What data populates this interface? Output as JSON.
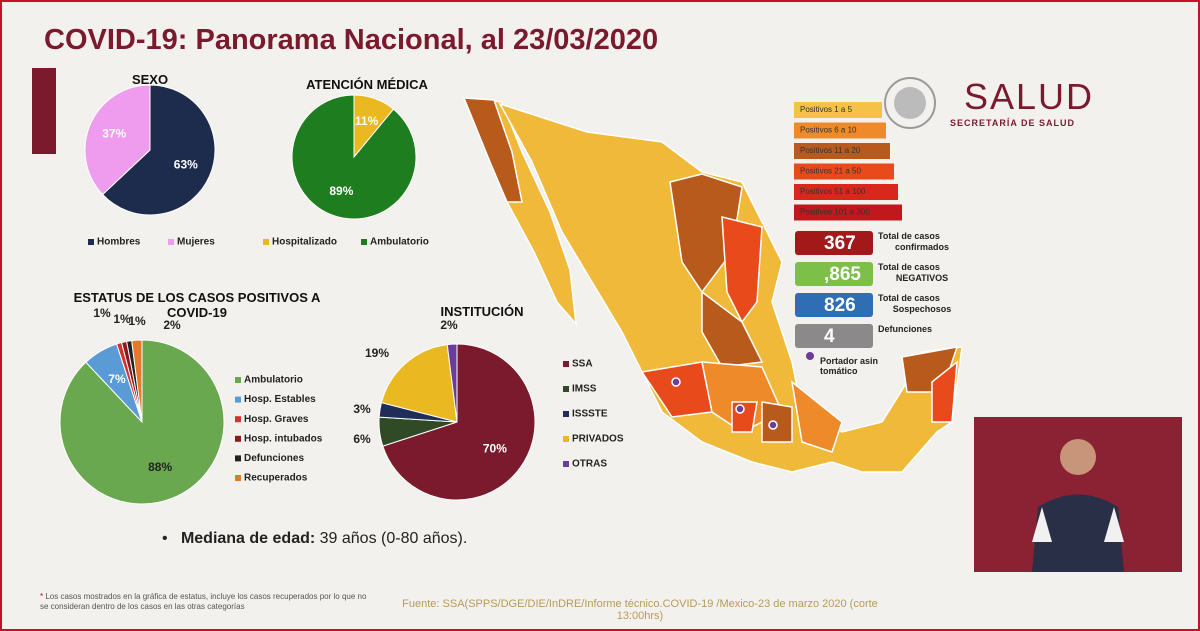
{
  "header": {
    "title": "COVID-19: Panorama Nacional, al 23/03/2020",
    "logo_title": "SALUD",
    "logo_subtitle": "SECRETARÍA DE SALUD"
  },
  "chart_data": [
    {
      "type": "pie",
      "title": "SEXO",
      "categories": [
        "Hombres",
        "Mujeres"
      ],
      "values": [
        63,
        37
      ],
      "value_labels": [
        "63%",
        "37%"
      ],
      "colors": [
        "#1d2b4c",
        "#ef9cef"
      ]
    },
    {
      "type": "pie",
      "title": "ATENCIÓN MÉDICA",
      "categories": [
        "Hospitalizado",
        "Ambulatorio"
      ],
      "values": [
        11,
        89
      ],
      "value_labels": [
        "11%",
        "89%"
      ],
      "colors": [
        "#eab820",
        "#1e7d1e"
      ]
    },
    {
      "type": "pie",
      "title": "ESTATUS DE LOS CASOS POSITIVOS A COVID-19",
      "categories": [
        "Ambulatorio",
        "Hosp. Estables",
        "Hosp. Graves",
        "Hosp. intubados",
        "Defunciones",
        "Recuperados"
      ],
      "values": [
        88,
        7,
        1,
        1,
        1,
        2
      ],
      "value_labels": [
        "88%",
        "7%",
        "1%",
        "1%",
        "1%",
        "2%"
      ],
      "colors": [
        "#6aa84f",
        "#5b9bd5",
        "#d0342c",
        "#8b1a1a",
        "#222222",
        "#e6782a"
      ]
    },
    {
      "type": "pie",
      "title": "INSTITUCIÓN",
      "categories": [
        "SSA",
        "IMSS",
        "ISSSTE",
        "PRIVADOS",
        "OTRAS"
      ],
      "values": [
        70,
        6,
        3,
        19,
        2
      ],
      "value_labels": [
        "70%",
        "6%",
        "3%",
        "19%",
        "2%"
      ],
      "colors": [
        "#7b1a2c",
        "#2f4a24",
        "#1f2d58",
        "#eab820",
        "#6a3d9a"
      ]
    }
  ],
  "map_legend": {
    "items": [
      "Positivos 1 a 5",
      "Positivos 6 a 10",
      "Positivos 11 a 20",
      "Positivos 21 a 50",
      "Positivos 51 a 100",
      "Positivos 101 a 300"
    ],
    "colors": [
      "#f3c246",
      "#ee8a2a",
      "#b85a1c",
      "#e84a1c",
      "#d8281c",
      "#c0181c"
    ]
  },
  "stats": [
    {
      "number": 367,
      "label": "Total de casos confirmados",
      "color": "#a31818"
    },
    {
      "number": ",865",
      "label": "Total de casos NEGATIVOS",
      "color": "#7cc04a"
    },
    {
      "number": 826,
      "label": "Total de casos Sospechosos",
      "color": "#2f6db5"
    },
    {
      "number": 4,
      "label": "Defunciones",
      "color": "#8a8a8a"
    }
  ],
  "carrier_label": "Portador asintomático",
  "median": {
    "label": "Mediana de edad:",
    "text": "39 años (0-80 años)."
  },
  "footnote": "Los casos mostrados en la gráfica de estatus, incluye los casos recuperados por lo que no se consideran dentro de los casos en las otras categorías",
  "source": "Fuente: SSA(SPPS/DGE/DIE/InDRE/Informe técnico.COVID-19 /Mexico-23 de marzo 2020 (corte 13:00hrs)"
}
